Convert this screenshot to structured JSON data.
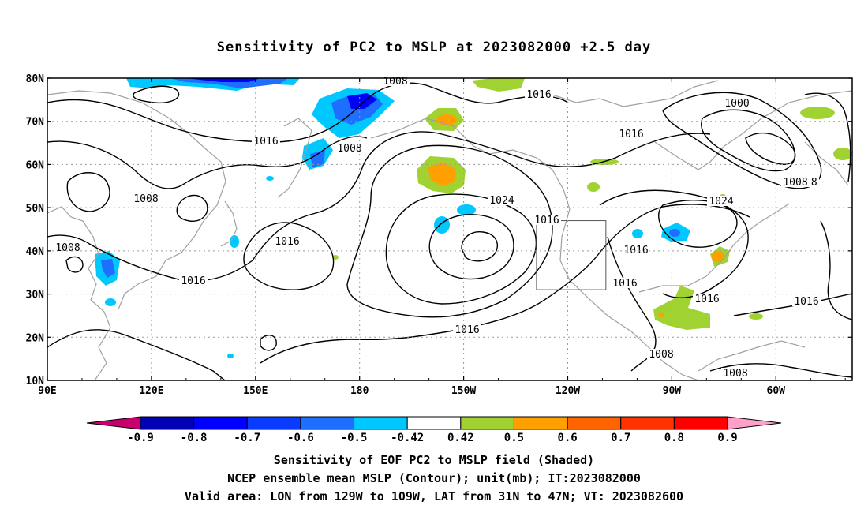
{
  "title": "Sensitivity of PC2 to MSLP at 2023082000 +2.5 day",
  "map": {
    "lon_ticks": [
      "90E",
      "120E",
      "150E",
      "180",
      "150W",
      "120W",
      "90W",
      "60W"
    ],
    "lat_ticks": [
      "80N",
      "70N",
      "60N",
      "50N",
      "40N",
      "30N",
      "20N",
      "10N"
    ],
    "lon_range": [
      90,
      322
    ],
    "lat_range": [
      10,
      80
    ],
    "grid_lines": "dotted",
    "contour_color": "#000000",
    "coast_color": "#a0a0a0",
    "contour_labels": [
      "1008",
      "1016",
      "1016",
      "1008",
      "1008",
      "1024",
      "1016",
      "1016",
      "1016",
      "1016",
      "1000",
      "1016",
      "1008",
      "1024",
      "1016",
      "1016",
      "1016",
      "1008",
      "1008",
      "1016",
      "1008",
      "1008"
    ],
    "valid_box": {
      "lon_west": 231,
      "lon_east": 251,
      "lat_south": 31,
      "lat_north": 47
    }
  },
  "colorbar": {
    "labels": [
      "-0.9",
      "-0.8",
      "-0.7",
      "-0.6",
      "-0.5",
      "-0.42",
      "0.42",
      "0.5",
      "0.6",
      "0.7",
      "0.8",
      "0.9"
    ],
    "colors": [
      "#0000b4",
      "#0000ff",
      "#0a3cff",
      "#1e6eff",
      "#00c8ff",
      "#ffffff",
      "#a0d232",
      "#ffa000",
      "#ff6400",
      "#ff3200",
      "#ff0000"
    ],
    "low_end_color": "#c8006e",
    "high_end_color": "#ffa0c8"
  },
  "captions": [
    "Sensitivity of EOF PC2 to MSLP field (Shaded)",
    "NCEP ensemble mean MSLP (Contour); unit(mb); IT:2023082000",
    "Valid area: LON from 129W to 109W, LAT from 31N to 47N; VT: 2023082600"
  ]
}
